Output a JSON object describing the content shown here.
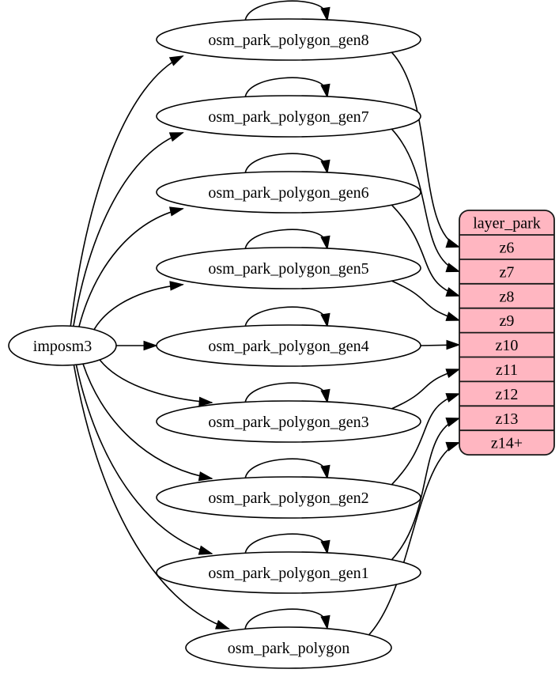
{
  "diagram": {
    "type": "graphviz-digraph",
    "background": "#ffffff",
    "edge_color": "#000000",
    "ellipse_fill": "#ffffff",
    "ellipse_stroke": "#000000",
    "text_color": "#000000",
    "source_node": {
      "label": "imposm3"
    },
    "table_nodes": [
      {
        "label": "osm_park_polygon_gen8"
      },
      {
        "label": "osm_park_polygon_gen7"
      },
      {
        "label": "osm_park_polygon_gen6"
      },
      {
        "label": "osm_park_polygon_gen5"
      },
      {
        "label": "osm_park_polygon_gen4"
      },
      {
        "label": "osm_park_polygon_gen3"
      },
      {
        "label": "osm_park_polygon_gen2"
      },
      {
        "label": "osm_park_polygon_gen1"
      },
      {
        "label": "osm_park_polygon"
      }
    ],
    "layer_node": {
      "title": "layer_park",
      "rows": [
        "z6",
        "z7",
        "z8",
        "z9",
        "z10",
        "z11",
        "z12",
        "z13",
        "z14+"
      ],
      "fill": "#ffb6c1",
      "stroke": "#181818"
    },
    "edges": [
      {
        "from": "imposm3",
        "to": "osm_park_polygon_gen8"
      },
      {
        "from": "imposm3",
        "to": "osm_park_polygon_gen7"
      },
      {
        "from": "imposm3",
        "to": "osm_park_polygon_gen6"
      },
      {
        "from": "imposm3",
        "to": "osm_park_polygon_gen5"
      },
      {
        "from": "imposm3",
        "to": "osm_park_polygon_gen4"
      },
      {
        "from": "imposm3",
        "to": "osm_park_polygon_gen3"
      },
      {
        "from": "imposm3",
        "to": "osm_park_polygon_gen2"
      },
      {
        "from": "imposm3",
        "to": "osm_park_polygon_gen1"
      },
      {
        "from": "imposm3",
        "to": "osm_park_polygon"
      },
      {
        "from": "osm_park_polygon_gen8",
        "to": "osm_park_polygon_gen8"
      },
      {
        "from": "osm_park_polygon_gen7",
        "to": "osm_park_polygon_gen7"
      },
      {
        "from": "osm_park_polygon_gen6",
        "to": "osm_park_polygon_gen6"
      },
      {
        "from": "osm_park_polygon_gen5",
        "to": "osm_park_polygon_gen5"
      },
      {
        "from": "osm_park_polygon_gen4",
        "to": "osm_park_polygon_gen4"
      },
      {
        "from": "osm_park_polygon_gen3",
        "to": "osm_park_polygon_gen3"
      },
      {
        "from": "osm_park_polygon_gen2",
        "to": "osm_park_polygon_gen2"
      },
      {
        "from": "osm_park_polygon_gen1",
        "to": "osm_park_polygon_gen1"
      },
      {
        "from": "osm_park_polygon",
        "to": "osm_park_polygon"
      },
      {
        "from": "osm_park_polygon_gen8",
        "to": "layer_park.z6"
      },
      {
        "from": "osm_park_polygon_gen7",
        "to": "layer_park.z7"
      },
      {
        "from": "osm_park_polygon_gen6",
        "to": "layer_park.z8"
      },
      {
        "from": "osm_park_polygon_gen5",
        "to": "layer_park.z9"
      },
      {
        "from": "osm_park_polygon_gen4",
        "to": "layer_park.z10"
      },
      {
        "from": "osm_park_polygon_gen3",
        "to": "layer_park.z11"
      },
      {
        "from": "osm_park_polygon_gen2",
        "to": "layer_park.z12"
      },
      {
        "from": "osm_park_polygon_gen1",
        "to": "layer_park.z13"
      },
      {
        "from": "osm_park_polygon",
        "to": "layer_park.z14+"
      }
    ]
  }
}
